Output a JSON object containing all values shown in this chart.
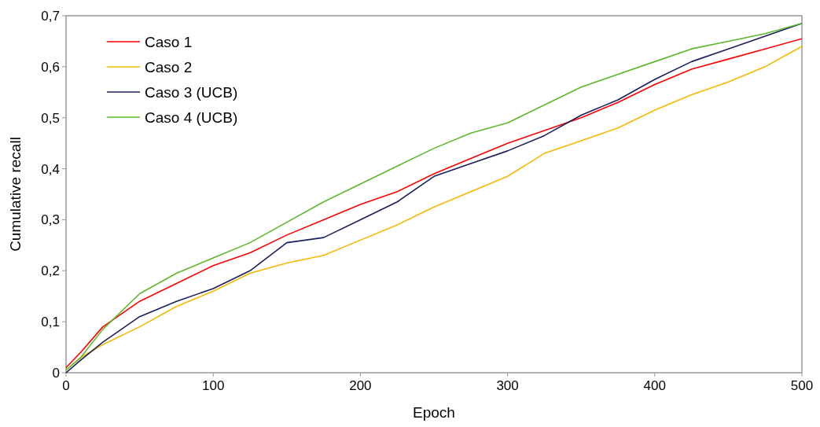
{
  "chart_data": {
    "type": "line",
    "xlabel": "Epoch",
    "ylabel": "Cumulative recall",
    "x": [
      0,
      10,
      25,
      50,
      75,
      100,
      125,
      150,
      175,
      200,
      225,
      250,
      275,
      300,
      325,
      350,
      375,
      400,
      425,
      450,
      475,
      500
    ],
    "series": [
      {
        "name": "Caso 1",
        "color": "#ff0000",
        "values": [
          0.01,
          0.04,
          0.09,
          0.14,
          0.175,
          0.21,
          0.235,
          0.27,
          0.3,
          0.33,
          0.355,
          0.39,
          0.42,
          0.45,
          0.475,
          0.5,
          0.53,
          0.565,
          0.595,
          0.615,
          0.635,
          0.655
        ]
      },
      {
        "name": "Caso 2",
        "color": "#f5b800",
        "values": [
          0.005,
          0.03,
          0.055,
          0.09,
          0.13,
          0.16,
          0.195,
          0.215,
          0.23,
          0.26,
          0.29,
          0.325,
          0.355,
          0.385,
          0.43,
          0.455,
          0.48,
          0.515,
          0.545,
          0.57,
          0.6,
          0.64
        ]
      },
      {
        "name": "Caso 3 (UCB)",
        "color": "#1a1f5e",
        "values": [
          0,
          0.025,
          0.06,
          0.11,
          0.14,
          0.165,
          0.2,
          0.255,
          0.265,
          0.3,
          0.335,
          0.385,
          0.41,
          0.435,
          0.465,
          0.505,
          0.535,
          0.575,
          0.61,
          0.635,
          0.66,
          0.685
        ]
      },
      {
        "name": "Caso 4 (UCB)",
        "color": "#5cb82a",
        "values": [
          0.005,
          0.03,
          0.085,
          0.155,
          0.195,
          0.225,
          0.255,
          0.295,
          0.335,
          0.37,
          0.405,
          0.44,
          0.47,
          0.49,
          0.525,
          0.56,
          0.585,
          0.61,
          0.635,
          0.65,
          0.665,
          0.685
        ]
      }
    ],
    "xlim": [
      0,
      500
    ],
    "xticks": [
      0,
      100,
      200,
      300,
      400,
      500
    ],
    "ylim": [
      0,
      0.7
    ],
    "yticks": [
      0,
      {
        "value": 0.1,
        "label": "0,1"
      },
      {
        "value": 0.2,
        "label": "0,2"
      },
      {
        "value": 0.3,
        "label": "0,3"
      },
      {
        "value": 0.4,
        "label": "0,4"
      },
      {
        "value": 0.5,
        "label": "0,5"
      },
      {
        "value": 0.6,
        "label": "0,6"
      },
      {
        "value": 0.7,
        "label": "0,7"
      }
    ],
    "legend": "top left",
    "grid": false
  }
}
